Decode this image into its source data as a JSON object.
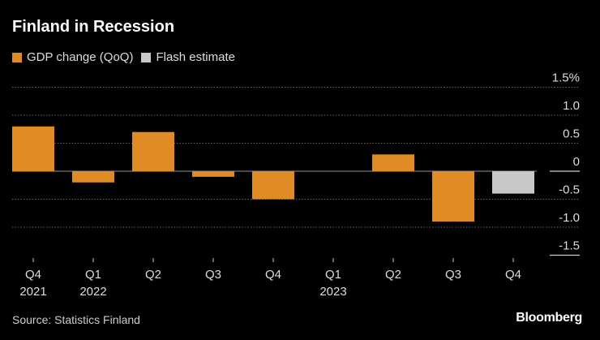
{
  "chart_data": {
    "type": "bar",
    "title": "Finland in Recession",
    "categories": [
      {
        "quarter": "Q4",
        "year": "2021"
      },
      {
        "quarter": "Q1",
        "year": "2022"
      },
      {
        "quarter": "Q2",
        "year": ""
      },
      {
        "quarter": "Q3",
        "year": ""
      },
      {
        "quarter": "Q4",
        "year": ""
      },
      {
        "quarter": "Q1",
        "year": "2023"
      },
      {
        "quarter": "Q2",
        "year": ""
      },
      {
        "quarter": "Q3",
        "year": ""
      },
      {
        "quarter": "Q4",
        "year": ""
      }
    ],
    "series": [
      {
        "name": "GDP change (QoQ)",
        "color": "#e08c26",
        "values": [
          0.8,
          -0.2,
          0.7,
          -0.1,
          -0.5,
          0,
          0.3,
          -0.9,
          null
        ]
      },
      {
        "name": "Flash estimate",
        "color": "#c8c8c8",
        "values": [
          null,
          null,
          null,
          null,
          null,
          null,
          null,
          null,
          -0.4
        ]
      }
    ],
    "ylim": [
      -1.5,
      1.5
    ],
    "yticks": [
      {
        "value": 1.5,
        "label": "1.5%"
      },
      {
        "value": 1.0,
        "label": "1.0"
      },
      {
        "value": 0.5,
        "label": "0.5"
      },
      {
        "value": 0,
        "label": "0"
      },
      {
        "value": -0.5,
        "label": "-0.5"
      },
      {
        "value": -1.0,
        "label": "-1.0"
      },
      {
        "value": -1.5,
        "label": "-1.5"
      }
    ],
    "xlabel": "",
    "ylabel": "",
    "grid": true,
    "legend_position": "top-left"
  },
  "source": "Source: Statistics Finland",
  "brand": "Bloomberg"
}
